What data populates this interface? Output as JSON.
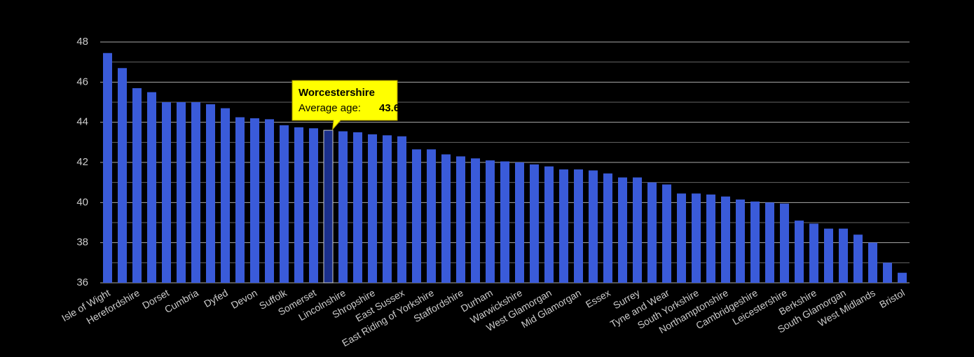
{
  "chart_data": {
    "type": "bar",
    "categories": [
      "Isle of Wight",
      null,
      "Herefordshire",
      null,
      "Dorset",
      null,
      "Cumbria",
      null,
      "Dyfed",
      null,
      "Devon",
      null,
      "Suffolk",
      null,
      "Somerset",
      null,
      "Lincolnshire",
      null,
      "Shropshire",
      null,
      "East Sussex",
      null,
      "East Riding of Yorkshire",
      null,
      "Staffordshire",
      null,
      "Durham",
      null,
      "Warwickshire",
      null,
      "West Glamorgan",
      null,
      "Mid Glamorgan",
      null,
      "Essex",
      null,
      "Surrey",
      null,
      "Tyne and Wear",
      null,
      "South Yorkshire",
      null,
      "Northamptonshire",
      null,
      "Cambridgeshire",
      null,
      "Leicestershire",
      null,
      "Berkshire",
      null,
      "South Glamorgan",
      null,
      "West Midlands",
      null,
      "Bristol"
    ],
    "values": [
      47.45,
      46.7,
      45.7,
      45.5,
      45.0,
      45.0,
      45.0,
      44.9,
      44.7,
      44.25,
      44.2,
      44.15,
      43.85,
      43.75,
      43.7,
      43.6,
      43.55,
      43.5,
      43.4,
      43.35,
      43.3,
      42.65,
      42.65,
      42.4,
      42.3,
      42.2,
      42.1,
      42.05,
      42.0,
      41.9,
      41.8,
      41.65,
      41.65,
      41.6,
      41.45,
      41.25,
      41.25,
      41.0,
      40.9,
      40.45,
      40.45,
      40.4,
      40.3,
      40.15,
      40.05,
      40.0,
      39.95,
      39.1,
      38.95,
      38.7,
      38.7,
      38.4,
      38.0,
      37.0,
      36.5
    ],
    "color": "#3a5bd9",
    "highlight_color": "#1a2f8a",
    "ylim": [
      36,
      48
    ],
    "yticks": [
      36,
      38,
      40,
      42,
      44,
      46,
      48
    ],
    "minor_yticks": [
      37,
      39,
      41,
      43,
      45,
      47
    ],
    "grid": true,
    "tooltip": {
      "index": 15,
      "category": "Worcestershire",
      "label": "Average age:"
    }
  }
}
